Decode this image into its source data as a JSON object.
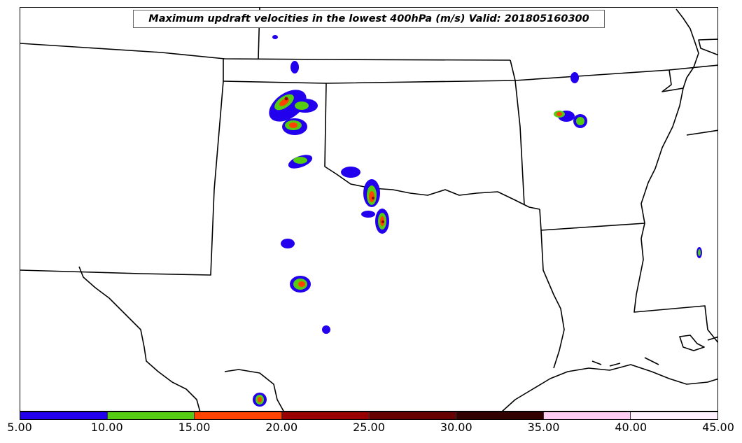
{
  "title": "Maximum updraft velocities in the lowest 400hPa (m/s) Valid: 201805160300",
  "colorbar": {
    "labels": [
      "5.00",
      "10.00",
      "15.00",
      "20.00",
      "25.00",
      "30.00",
      "35.00",
      "40.00",
      "45.00"
    ],
    "colors": [
      "#2200ee",
      "#55cc11",
      "#ff4400",
      "#990000",
      "#660000",
      "#330000",
      "#ffccf2",
      "#fff0ff"
    ]
  }
}
